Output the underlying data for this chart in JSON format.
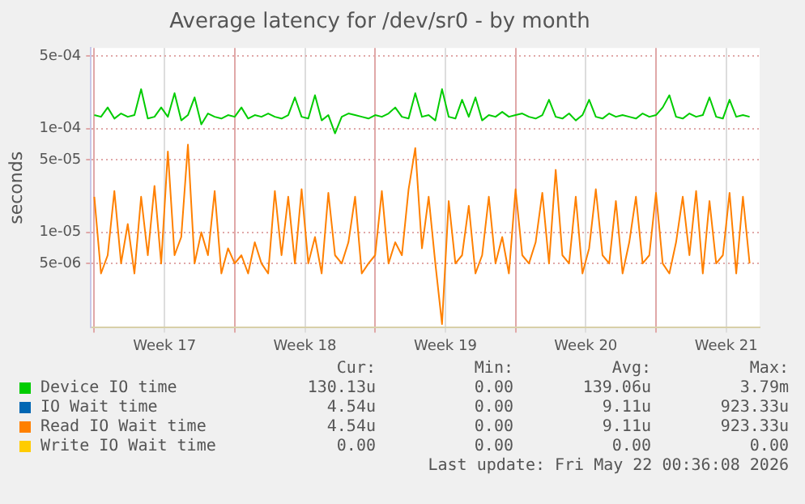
{
  "chart_data": {
    "type": "line",
    "title": "Average latency for /dev/sr0 - by month",
    "ylabel": "seconds",
    "log": "y",
    "grid": true,
    "legend": "bottom",
    "xlim": [
      "2026-04-19T20:00",
      "2026-05-23T04:00"
    ],
    "xticks": [
      {
        "value": "2026-04-20T00:00",
        "label": null
      },
      {
        "value": "2026-04-23T12:00",
        "label": "Week 17"
      },
      {
        "value": "2026-04-27T00:00",
        "label": null
      },
      {
        "value": "2026-04-30T12:00",
        "label": "Week 18"
      },
      {
        "value": "2026-05-04T00:00",
        "label": null
      },
      {
        "value": "2026-05-07T12:00",
        "label": "Week 19"
      },
      {
        "value": "2026-05-11T00:00",
        "label": null
      },
      {
        "value": "2026-05-14T12:00",
        "label": "Week 20"
      },
      {
        "value": "2026-05-18T00:00",
        "label": null
      },
      {
        "value": "2026-05-21T12:00",
        "label": "Week 21"
      }
    ],
    "ylim": [
      1.2e-06,
      0.0006
    ],
    "yticks": [
      {
        "value": 5e-06,
        "label": "5e-06"
      },
      {
        "value": 1e-05,
        "label": "1e-05"
      },
      {
        "value": 5e-05,
        "label": "5e-05"
      },
      {
        "value": 0.0001,
        "label": "1e-04"
      },
      {
        "value": 0.0005,
        "label": "5e-04"
      }
    ],
    "x": [
      "2026-04-20T00:00",
      "2026-04-20T08:00",
      "2026-04-20T16:00",
      "2026-04-21T00:00",
      "2026-04-21T08:00",
      "2026-04-21T16:00",
      "2026-04-22T00:00",
      "2026-04-22T08:00",
      "2026-04-22T16:00",
      "2026-04-23T00:00",
      "2026-04-23T08:00",
      "2026-04-23T16:00",
      "2026-04-24T00:00",
      "2026-04-24T08:00",
      "2026-04-24T16:00",
      "2026-04-25T00:00",
      "2026-04-25T08:00",
      "2026-04-25T16:00",
      "2026-04-26T00:00",
      "2026-04-26T08:00",
      "2026-04-26T16:00",
      "2026-04-27T00:00",
      "2026-04-27T08:00",
      "2026-04-27T16:00",
      "2026-04-28T00:00",
      "2026-04-28T08:00",
      "2026-04-28T16:00",
      "2026-04-29T00:00",
      "2026-04-29T08:00",
      "2026-04-29T16:00",
      "2026-04-30T00:00",
      "2026-04-30T08:00",
      "2026-04-30T16:00",
      "2026-05-01T00:00",
      "2026-05-01T08:00",
      "2026-05-01T16:00",
      "2026-05-02T00:00",
      "2026-05-02T08:00",
      "2026-05-02T16:00",
      "2026-05-03T00:00",
      "2026-05-03T08:00",
      "2026-05-03T16:00",
      "2026-05-04T00:00",
      "2026-05-04T08:00",
      "2026-05-04T16:00",
      "2026-05-05T00:00",
      "2026-05-05T08:00",
      "2026-05-05T16:00",
      "2026-05-06T00:00",
      "2026-05-06T08:00",
      "2026-05-06T16:00",
      "2026-05-07T00:00",
      "2026-05-07T08:00",
      "2026-05-07T16:00",
      "2026-05-08T00:00",
      "2026-05-08T08:00",
      "2026-05-08T16:00",
      "2026-05-09T00:00",
      "2026-05-09T08:00",
      "2026-05-09T16:00",
      "2026-05-10T00:00",
      "2026-05-10T08:00",
      "2026-05-10T16:00",
      "2026-05-11T00:00",
      "2026-05-11T08:00",
      "2026-05-11T16:00",
      "2026-05-12T00:00",
      "2026-05-12T08:00",
      "2026-05-12T16:00",
      "2026-05-13T00:00",
      "2026-05-13T08:00",
      "2026-05-13T16:00",
      "2026-05-14T00:00",
      "2026-05-14T08:00",
      "2026-05-14T16:00",
      "2026-05-15T00:00",
      "2026-05-15T08:00",
      "2026-05-15T16:00",
      "2026-05-16T00:00",
      "2026-05-16T08:00",
      "2026-05-16T16:00",
      "2026-05-17T00:00",
      "2026-05-17T08:00",
      "2026-05-17T16:00",
      "2026-05-18T00:00",
      "2026-05-18T08:00",
      "2026-05-18T16:00",
      "2026-05-19T00:00",
      "2026-05-19T08:00",
      "2026-05-19T16:00",
      "2026-05-20T00:00",
      "2026-05-20T08:00",
      "2026-05-20T16:00",
      "2026-05-21T00:00",
      "2026-05-21T08:00",
      "2026-05-21T16:00",
      "2026-05-22T00:00",
      "2026-05-22T08:00",
      "2026-05-22T16:00"
    ],
    "series": [
      {
        "name": "Device IO time",
        "color": "#00cc00",
        "values": [
          0.000135,
          0.00013,
          0.00016,
          0.000125,
          0.00014,
          0.00013,
          0.000135,
          0.00024,
          0.000125,
          0.00013,
          0.00016,
          0.00013,
          0.00022,
          0.00012,
          0.000135,
          0.0002,
          0.00011,
          0.00014,
          0.00013,
          0.000125,
          0.000135,
          0.00013,
          0.00016,
          0.000125,
          0.000135,
          0.00013,
          0.00014,
          0.00013,
          0.000125,
          0.000135,
          0.0002,
          0.00013,
          0.000125,
          0.00021,
          0.00012,
          0.000135,
          9e-05,
          0.00013,
          0.00014,
          0.000135,
          0.00013,
          0.000125,
          0.000135,
          0.00013,
          0.00014,
          0.00016,
          0.00013,
          0.000125,
          0.00022,
          0.00013,
          0.000135,
          0.00012,
          0.00024,
          0.00013,
          0.000125,
          0.00019,
          0.00013,
          0.0002,
          0.00012,
          0.000135,
          0.00013,
          0.000145,
          0.00013,
          0.000135,
          0.00014,
          0.00013,
          0.000125,
          0.000135,
          0.00019,
          0.00013,
          0.000125,
          0.00014,
          0.00012,
          0.000135,
          0.00019,
          0.00013,
          0.000125,
          0.00014,
          0.00013,
          0.000135,
          0.00013,
          0.000125,
          0.00014,
          0.00013,
          0.000135,
          0.00016,
          0.00021,
          0.00013,
          0.000125,
          0.00014,
          0.00013,
          0.000135,
          0.0002,
          0.00013,
          0.000125,
          0.00019,
          0.00013,
          0.000135,
          0.00013
        ]
      },
      {
        "name": "IO Wait time",
        "color": "#0066b3",
        "values": [
          null,
          null,
          null,
          null,
          null,
          null,
          null,
          null,
          null,
          null,
          null,
          null,
          null,
          null,
          null,
          null,
          null,
          null,
          null,
          null,
          null,
          null,
          null,
          null,
          null,
          null,
          null,
          null,
          null,
          null,
          null,
          null,
          null,
          null,
          null,
          null,
          null,
          null,
          null,
          null,
          null,
          null,
          null,
          null,
          null,
          null,
          null,
          null,
          null,
          null,
          null,
          null,
          null,
          null,
          null,
          null,
          null,
          null,
          null,
          null,
          null,
          null,
          null,
          null,
          null,
          null,
          null,
          null,
          null,
          null,
          null,
          null,
          null,
          null,
          null,
          null,
          null,
          null,
          null,
          null,
          null,
          null,
          null,
          null,
          null,
          null,
          null,
          null,
          null,
          null,
          null,
          null,
          null,
          null,
          null,
          null,
          null,
          null,
          null
        ]
      },
      {
        "name": "Read IO Wait time",
        "color": "#ff8000",
        "values": [
          2.2e-05,
          4e-06,
          6e-06,
          2.5e-05,
          5e-06,
          1.2e-05,
          4e-06,
          2.2e-05,
          6e-06,
          2.8e-05,
          5e-06,
          6e-05,
          6e-06,
          9e-06,
          7e-05,
          5e-06,
          1e-05,
          6e-06,
          2.5e-05,
          4e-06,
          7e-06,
          5e-06,
          6e-06,
          4e-06,
          8e-06,
          5e-06,
          4e-06,
          2.5e-05,
          6e-06,
          2.2e-05,
          5e-06,
          2.6e-05,
          5e-06,
          9e-06,
          4e-06,
          2.4e-05,
          6e-06,
          5e-06,
          8e-06,
          2.2e-05,
          4e-06,
          5e-06,
          6e-06,
          2.5e-05,
          5e-06,
          8e-06,
          6e-06,
          2.6e-05,
          6.5e-05,
          7e-06,
          2.2e-05,
          5e-06,
          1.3e-06,
          2e-05,
          5e-06,
          6e-06,
          1.8e-05,
          4e-06,
          6e-06,
          2.2e-05,
          5e-06,
          9e-06,
          4e-06,
          2.6e-05,
          6e-06,
          5e-06,
          8e-06,
          2.4e-05,
          5e-06,
          4e-05,
          6e-06,
          5e-06,
          2.2e-05,
          4e-06,
          7e-06,
          2.6e-05,
          6e-06,
          5e-06,
          2e-05,
          4e-06,
          8e-06,
          2.2e-05,
          5e-06,
          6e-06,
          2.4e-05,
          5e-06,
          4e-06,
          8e-06,
          2.2e-05,
          6e-06,
          2.5e-05,
          4e-06,
          2e-05,
          5e-06,
          6e-06,
          2.4e-05,
          4e-06,
          2.2e-05,
          5e-06
        ]
      },
      {
        "name": "Write IO Wait time",
        "color": "#ffcc00",
        "values": [
          null,
          null,
          null,
          null,
          null,
          null,
          null,
          null,
          null,
          null,
          null,
          null,
          null,
          null,
          null,
          null,
          null,
          null,
          null,
          null,
          null,
          null,
          null,
          null,
          null,
          null,
          null,
          null,
          null,
          null,
          null,
          null,
          null,
          null,
          null,
          null,
          null,
          null,
          null,
          null,
          null,
          null,
          null,
          null,
          null,
          null,
          null,
          null,
          null,
          null,
          null,
          null,
          null,
          null,
          null,
          null,
          null,
          null,
          null,
          null,
          null,
          null,
          null,
          null,
          null,
          null,
          null,
          null,
          null,
          null,
          null,
          null,
          null,
          null,
          null,
          null,
          null,
          null,
          null,
          null,
          null,
          null,
          null,
          null,
          null,
          null,
          null,
          null,
          null,
          null,
          null,
          null,
          null,
          null,
          null,
          null,
          null,
          null,
          null
        ]
      }
    ],
    "annotations": [
      "Cur:",
      "Min:",
      "Avg:",
      "Max:",
      "130.13u",
      "0.00",
      "139.06u",
      "3.79m",
      "4.54u",
      "0.00",
      "9.11u",
      "923.33u",
      "4.54u",
      "0.00",
      "9.11u",
      "923.33u",
      "0.00",
      "0.00",
      "0.00",
      "0.00",
      "Last update: Fri May 22 00:36:08 2026"
    ]
  }
}
